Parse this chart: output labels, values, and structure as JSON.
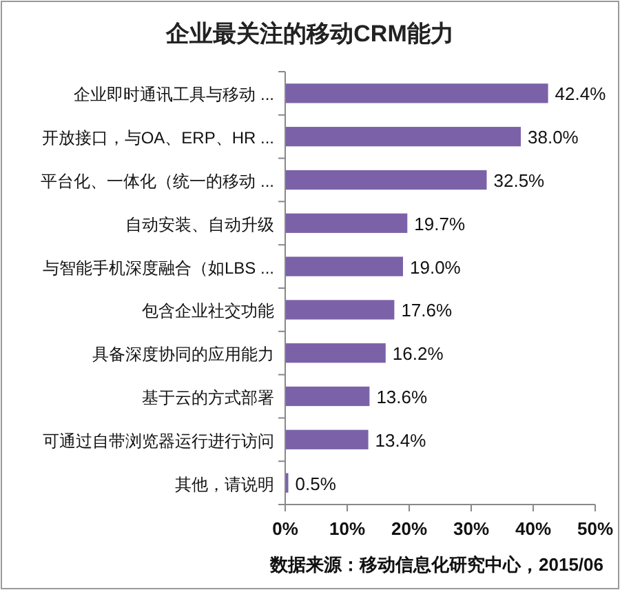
{
  "chart_data": {
    "type": "bar",
    "orientation": "horizontal",
    "title": "企业最关注的移动CRM能力",
    "categories": [
      "企业即时通讯工具与移动 ...",
      "开放接口，与OA、ERP、HR ...",
      "平台化、一体化（统一的移动 ...",
      "自动安装、自动升级",
      "与智能手机深度融合（如LBS ...",
      "包含企业社交功能",
      "具备深度协同的应用能力",
      "基于云的方式部署",
      "可通过自带浏览器运行进行访问",
      "其他，请说明"
    ],
    "values": [
      42.4,
      38.0,
      32.5,
      19.7,
      19.0,
      17.6,
      16.2,
      13.6,
      13.4,
      0.5
    ],
    "value_labels": [
      "42.4%",
      "38.0%",
      "32.5%",
      "19.7%",
      "19.0%",
      "17.6%",
      "16.2%",
      "13.6%",
      "13.4%",
      "0.5%"
    ],
    "color": "#7b62a8",
    "xlim": [
      0,
      50
    ],
    "xticks": [
      {
        "value": 0,
        "label": "0%"
      },
      {
        "value": 10,
        "label": "10%"
      },
      {
        "value": 20,
        "label": "20%"
      },
      {
        "value": 30,
        "label": "30%"
      },
      {
        "value": 40,
        "label": "40%"
      },
      {
        "value": 50,
        "label": "50%"
      }
    ],
    "annotations": [
      "数据来源：移动信息化研究中心，2015/06"
    ]
  }
}
